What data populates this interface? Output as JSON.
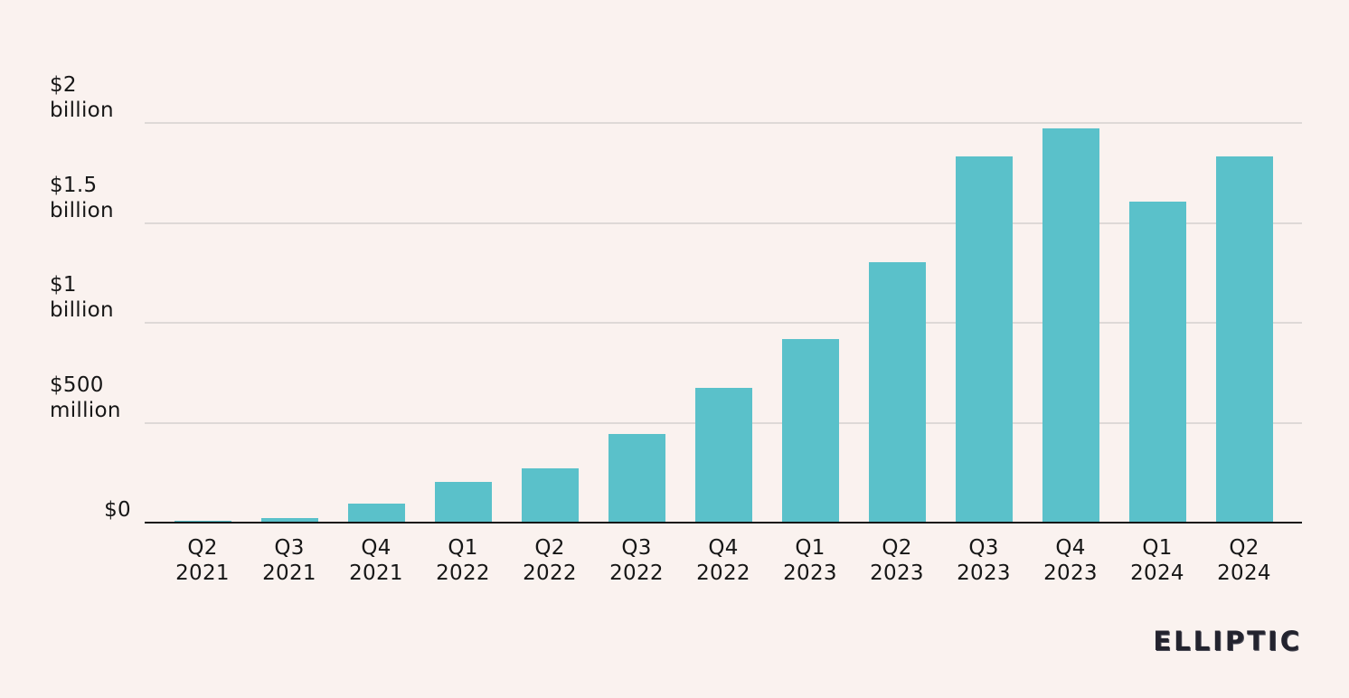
{
  "page": {
    "background": "#faf2ef",
    "text_color": "#161616"
  },
  "chart_data": {
    "type": "bar",
    "title": "",
    "xlabel": "",
    "ylabel": "",
    "categories": [
      "Q2 2021",
      "Q3 2021",
      "Q4 2021",
      "Q1 2022",
      "Q2 2022",
      "Q3 2022",
      "Q4 2022",
      "Q1 2023",
      "Q2 2023",
      "Q3 2023",
      "Q4 2023",
      "Q1 2024",
      "Q2 2024"
    ],
    "values": [
      2,
      20,
      90,
      200,
      265,
      440,
      670,
      915,
      1300,
      1830,
      1970,
      1600,
      1830
    ],
    "value_unit": "million USD",
    "ylim": [
      0,
      2000
    ],
    "yticks": [
      {
        "value": 0,
        "lines": [
          "$0"
        ]
      },
      {
        "value": 500,
        "lines": [
          "$500",
          "million"
        ]
      },
      {
        "value": 1000,
        "lines": [
          "$1",
          "billion"
        ]
      },
      {
        "value": 1500,
        "lines": [
          "$1.5",
          "billion"
        ]
      },
      {
        "value": 2000,
        "lines": [
          "$2",
          "billion"
        ]
      }
    ],
    "bar_color": "#5ac1ca",
    "gridline_color": "#ded9d7",
    "axis_color": "#141414",
    "grid": "horizontal",
    "legend_position": "none"
  },
  "branding": {
    "logo_text": "ELLIPTIC"
  }
}
